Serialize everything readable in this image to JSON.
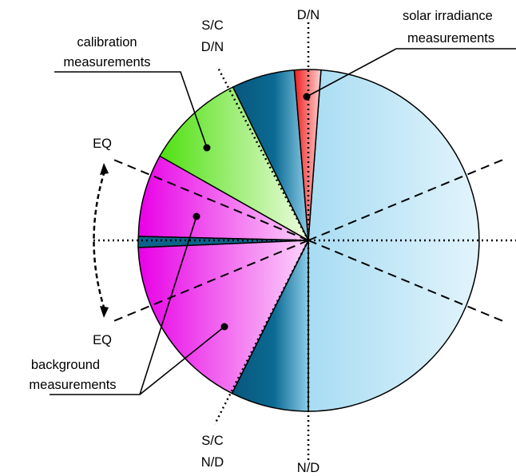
{
  "labels": {
    "dn_top": "D/N",
    "nd_bottom": "N/D",
    "sc_top_line1": "S/C",
    "sc_top_line2": "D/N",
    "sc_bottom_line1": "S/C",
    "sc_bottom_line2": "N/D",
    "eq_top": "EQ",
    "eq_bottom": "EQ",
    "calibration_line1": "calibration",
    "calibration_line2": "measurements",
    "solar_line1": "solar irradiance",
    "solar_line2": "measurements",
    "background_line1": "background",
    "background_line2": "measurements"
  },
  "colors": {
    "light_blue": "#bfe6f6",
    "dark_blue": "#0a5f86",
    "green": "#5ee82a",
    "magenta": "#ee18ea",
    "red": "#f03030"
  }
}
